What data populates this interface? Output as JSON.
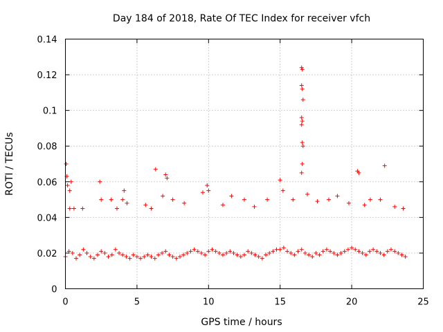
{
  "chart_data": {
    "type": "scatter",
    "title": "Day 184 of 2018, Rate Of TEC Index for receiver vfch",
    "xlabel": "GPS time / hours",
    "ylabel": "ROTI / TECUs",
    "xlim": [
      0,
      25
    ],
    "ylim": [
      0,
      0.14
    ],
    "xticks": [
      0,
      5,
      10,
      15,
      20,
      25
    ],
    "xtick_labels": [
      "0",
      "5",
      "10",
      "15",
      "20",
      "25"
    ],
    "yticks": [
      0,
      0.02,
      0.04,
      0.06,
      0.08,
      0.1,
      0.12,
      0.14
    ],
    "ytick_labels": [
      "0",
      "0.02",
      "0.04",
      "0.06",
      "0.08",
      "0.1",
      "0.12",
      "0.14"
    ],
    "grid": true,
    "marker": "+",
    "color": "#ff0000",
    "series": [
      {
        "name": "ROTI",
        "x": [
          0.0,
          0.25,
          0.5,
          0.75,
          1.0,
          1.25,
          1.5,
          1.75,
          2.0,
          2.25,
          2.5,
          2.75,
          3.0,
          3.25,
          3.5,
          3.75,
          4.0,
          4.25,
          4.5,
          4.75,
          5.0,
          5.25,
          5.5,
          5.75,
          6.0,
          6.25,
          6.5,
          6.75,
          7.0,
          7.25,
          7.5,
          7.75,
          8.0,
          8.25,
          8.5,
          8.75,
          9.0,
          9.25,
          9.5,
          9.75,
          10.0,
          10.25,
          10.5,
          10.75,
          11.0,
          11.25,
          11.5,
          11.75,
          12.0,
          12.25,
          12.5,
          12.75,
          13.0,
          13.25,
          13.5,
          13.75,
          14.0,
          14.25,
          14.5,
          14.75,
          15.0,
          15.25,
          15.5,
          15.75,
          16.0,
          16.25,
          16.5,
          16.75,
          17.0,
          17.25,
          17.5,
          17.75,
          18.0,
          18.25,
          18.5,
          18.75,
          19.0,
          19.25,
          19.5,
          19.75,
          20.0,
          20.25,
          20.5,
          20.75,
          21.0,
          21.25,
          21.5,
          21.75,
          22.0,
          22.25,
          22.5,
          22.75,
          23.0,
          23.25,
          23.5,
          23.75,
          0.05,
          0.1,
          0.15,
          0.3,
          0.4,
          2.4,
          4.1,
          6.3,
          7.0,
          7.1,
          9.9,
          10.0,
          15.0,
          16.5,
          16.55,
          16.5,
          16.55,
          16.6,
          16.5,
          16.55,
          16.5,
          16.55,
          16.6,
          16.55,
          16.5,
          20.4,
          20.5,
          22.3,
          0.3,
          0.6,
          1.2,
          2.5,
          3.2,
          3.6,
          4.0,
          4.3,
          5.6,
          6.0,
          6.8,
          7.5,
          8.3,
          9.6,
          11.0,
          11.6,
          12.5,
          13.2,
          14.1,
          15.2,
          15.9,
          16.9,
          17.6,
          18.4,
          19.0,
          19.8,
          20.9,
          21.3,
          22.0,
          23.0,
          23.6
        ],
        "y": [
          0.018,
          0.021,
          0.02,
          0.017,
          0.019,
          0.022,
          0.02,
          0.018,
          0.017,
          0.019,
          0.021,
          0.02,
          0.018,
          0.019,
          0.022,
          0.02,
          0.019,
          0.018,
          0.017,
          0.019,
          0.018,
          0.017,
          0.018,
          0.019,
          0.018,
          0.017,
          0.019,
          0.02,
          0.021,
          0.019,
          0.018,
          0.017,
          0.018,
          0.019,
          0.02,
          0.021,
          0.022,
          0.021,
          0.02,
          0.019,
          0.021,
          0.022,
          0.021,
          0.02,
          0.019,
          0.02,
          0.021,
          0.02,
          0.019,
          0.018,
          0.019,
          0.021,
          0.02,
          0.019,
          0.018,
          0.017,
          0.019,
          0.02,
          0.021,
          0.022,
          0.022,
          0.023,
          0.021,
          0.02,
          0.019,
          0.021,
          0.022,
          0.02,
          0.019,
          0.018,
          0.02,
          0.019,
          0.021,
          0.022,
          0.021,
          0.02,
          0.019,
          0.02,
          0.021,
          0.022,
          0.023,
          0.022,
          0.021,
          0.02,
          0.019,
          0.021,
          0.022,
          0.021,
          0.02,
          0.019,
          0.021,
          0.022,
          0.021,
          0.02,
          0.019,
          0.018,
          0.07,
          0.063,
          0.058,
          0.055,
          0.06,
          0.06,
          0.055,
          0.067,
          0.064,
          0.062,
          0.058,
          0.055,
          0.061,
          0.124,
          0.123,
          0.114,
          0.112,
          0.106,
          0.096,
          0.094,
          0.092,
          0.082,
          0.08,
          0.07,
          0.065,
          0.066,
          0.065,
          0.069,
          0.045,
          0.045,
          0.045,
          0.05,
          0.05,
          0.045,
          0.05,
          0.048,
          0.047,
          0.045,
          0.052,
          0.05,
          0.048,
          0.054,
          0.047,
          0.052,
          0.05,
          0.046,
          0.05,
          0.055,
          0.05,
          0.053,
          0.049,
          0.05,
          0.052,
          0.048,
          0.047,
          0.05,
          0.05,
          0.046,
          0.045
        ]
      }
    ]
  }
}
